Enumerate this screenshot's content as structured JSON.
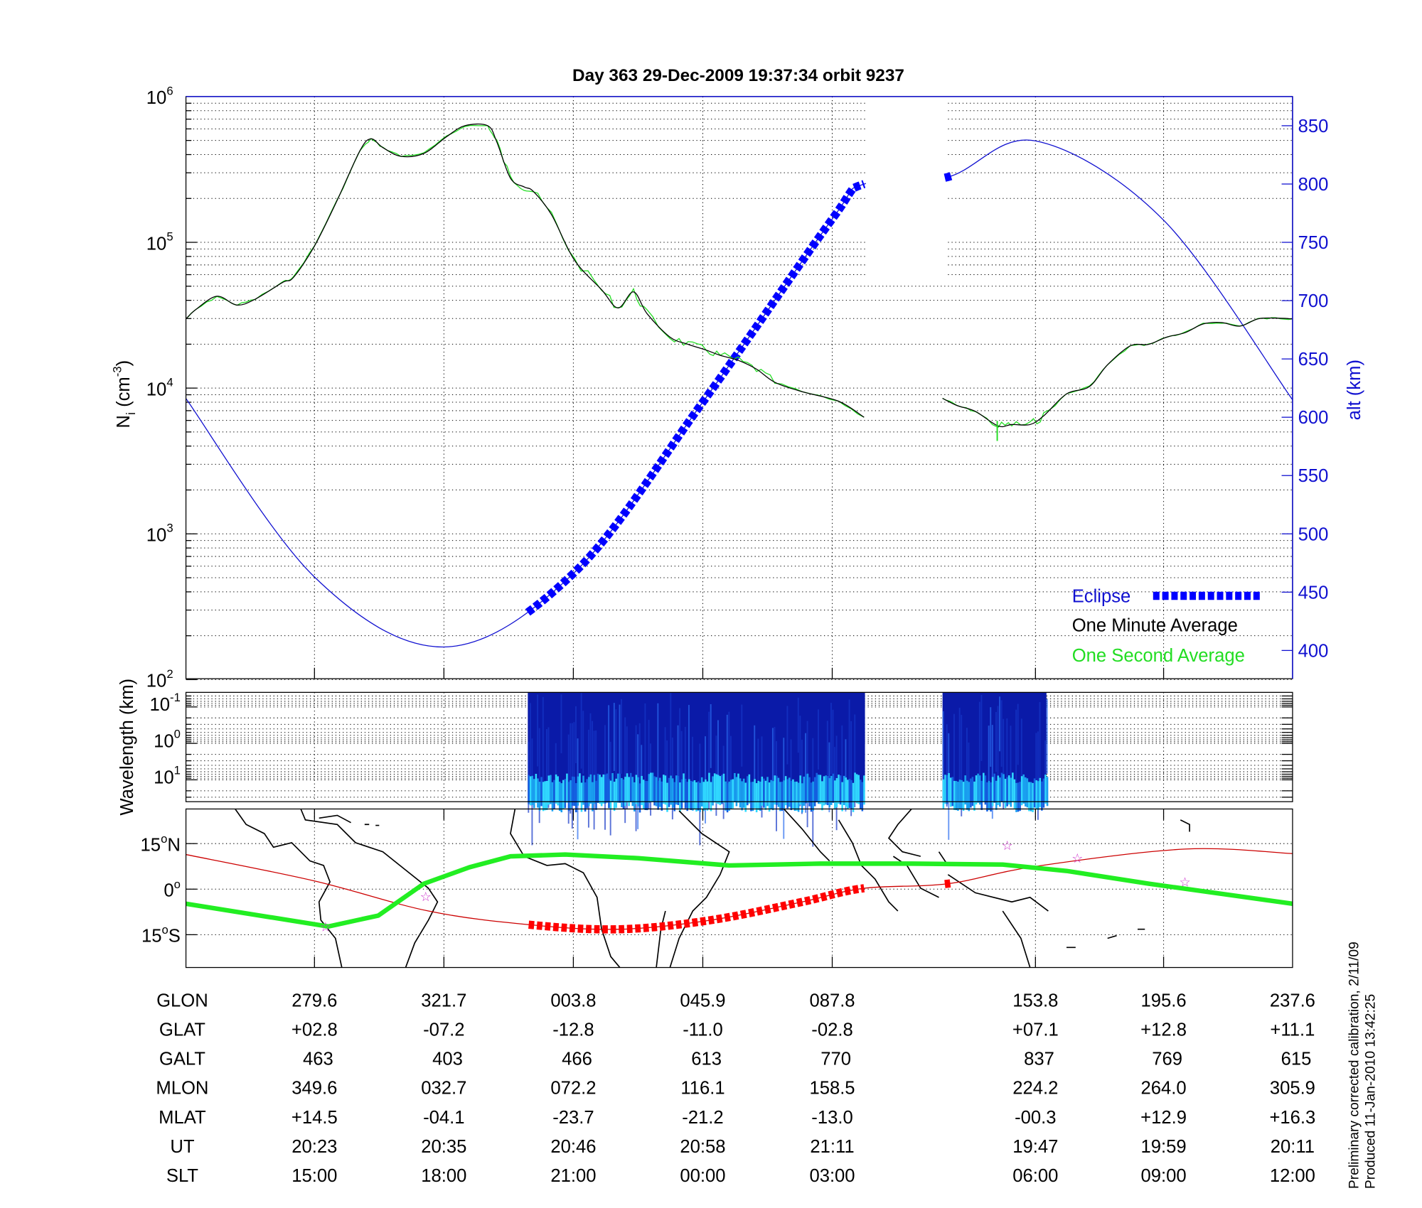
{
  "title": "Day 363  29-Dec-2009 19:37:34   orbit 9237",
  "side_notes": [
    "Preliminary corrected calibration, 2/11/09",
    "Produced 11-Jan-2010 13:42:25"
  ],
  "colors": {
    "minute_avg": "#000000",
    "second_avg": "#22dd22",
    "altitude": "#1010d0",
    "eclipse": "#0000ff",
    "track": "#cc0000",
    "footprint": "#22ee22",
    "star": "#cc33cc"
  },
  "chart_data": [
    {
      "type": "line",
      "title": "Day 363  29-Dec-2009 19:37:34   orbit 9237",
      "xunit": "x-tick index (0 = first labeled column)",
      "xlim": [
        -0.993,
        7.556
      ],
      "ylabel": {
        "base": "N",
        "sub": "i",
        "mid": " (cm",
        "sup": "-3",
        "end": ")"
      },
      "yscale": "log",
      "ylim_log10": [
        2,
        6
      ],
      "yticks": [
        {
          "base": "10",
          "exp": "6"
        },
        {
          "base": "10",
          "exp": "5"
        },
        {
          "base": "10",
          "exp": "4"
        },
        {
          "base": "10",
          "exp": "3"
        },
        {
          "base": "10",
          "exp": "2"
        }
      ],
      "y2label": "alt (km)",
      "y2lim": [
        375,
        875
      ],
      "y2ticks": [
        "850",
        "800",
        "750",
        "700",
        "650",
        "600",
        "550",
        "500",
        "450",
        "400"
      ],
      "legend": {
        "position": "bottom-right",
        "items": [
          "Eclipse",
          "One Minute Average",
          "One Second Average"
        ]
      },
      "series": [
        {
          "name": "One Minute Average",
          "axis": "log10_Ni",
          "segments": [
            [
              [
                -0.993,
                4.475
              ],
              [
                -0.915,
                4.54
              ],
              [
                -0.754,
                4.63
              ],
              [
                -0.599,
                4.57
              ],
              [
                -0.458,
                4.61
              ],
              [
                -0.246,
                4.725
              ],
              [
                -0.162,
                4.76
              ],
              [
                0,
                4.975
              ],
              [
                0.176,
                5.29
              ],
              [
                0.352,
                5.63
              ],
              [
                0.437,
                5.71
              ],
              [
                0.528,
                5.65
              ],
              [
                0.669,
                5.59
              ],
              [
                0.845,
                5.61
              ],
              [
                1.021,
                5.725
              ],
              [
                1.162,
                5.8
              ],
              [
                1.338,
                5.8
              ],
              [
                1.408,
                5.69
              ],
              [
                1.514,
                5.44
              ],
              [
                1.62,
                5.38
              ],
              [
                1.69,
                5.35
              ],
              [
                1.831,
                5.19
              ],
              [
                2.007,
                4.88
              ],
              [
                2.218,
                4.675
              ],
              [
                2.345,
                4.55
              ],
              [
                2.465,
                4.66
              ],
              [
                2.57,
                4.51
              ],
              [
                2.746,
                4.35
              ],
              [
                2.887,
                4.3
              ],
              [
                3.028,
                4.26
              ],
              [
                3.134,
                4.225
              ],
              [
                3.275,
                4.19
              ],
              [
                3.415,
                4.13
              ],
              [
                3.556,
                4.04
              ],
              [
                3.768,
                3.975
              ],
              [
                4.049,
                3.91
              ],
              [
                4.246,
                3.8
              ]
            ],
            [
              [
                4.852,
                3.93
              ],
              [
                4.965,
                3.88
              ],
              [
                5.106,
                3.84
              ],
              [
                5.282,
                3.74
              ],
              [
                5.387,
                3.75
              ],
              [
                5.528,
                3.75
              ],
              [
                5.634,
                3.81
              ],
              [
                5.81,
                3.96
              ],
              [
                5.986,
                4.01
              ],
              [
                6.127,
                4.16
              ],
              [
                6.303,
                4.29
              ],
              [
                6.444,
                4.3
              ],
              [
                6.585,
                4.35
              ],
              [
                6.725,
                4.38
              ],
              [
                6.866,
                4.44
              ],
              [
                7.007,
                4.45
              ],
              [
                7.148,
                4.425
              ],
              [
                7.289,
                4.475
              ],
              [
                7.43,
                4.48
              ],
              [
                7.556,
                4.475
              ]
            ]
          ]
        },
        {
          "name": "One Second Average",
          "axis": "log10_Ni",
          "note": "follows minute average with small fluctuations"
        },
        {
          "name": "Altitude",
          "axis": "alt_km",
          "points": [
            [
              -0.993,
              616
            ],
            [
              0,
              463
            ],
            [
              1,
              403
            ],
            [
              2,
              466
            ],
            [
              3,
              613
            ],
            [
              4,
              770
            ],
            [
              4.246,
              800
            ],
            [
              4.894,
              806
            ],
            [
              5.57,
              837
            ],
            [
              6.56,
              769
            ],
            [
              7.556,
              615
            ]
          ],
          "gap": [
            4.246,
            4.894
          ]
        },
        {
          "name": "Eclipse",
          "axis": "alt_km",
          "ranges": [
            [
              1.648,
              4.246
            ],
            [
              4.87,
              4.92
            ]
          ]
        }
      ]
    },
    {
      "type": "heatmap",
      "ylabel": "Wavelength (km)",
      "yticks": [
        {
          "base": "10",
          "exp": "-1"
        },
        {
          "base": "10",
          "exp": "0"
        },
        {
          "base": "10",
          "exp": "1"
        }
      ],
      "data_ranges": [
        [
          1.648,
          4.253
        ],
        [
          4.852,
          5.655
        ]
      ]
    },
    {
      "type": "line",
      "subtype": "map",
      "yticks": [
        {
          "num": "15",
          "deg": "o",
          "hem": "N"
        },
        {
          "num": "0",
          "deg": "o",
          "hem": ""
        },
        {
          "num": "15",
          "deg": "o",
          "hem": "S"
        }
      ],
      "footprint": [
        [
          -0.993,
          -4.8
        ],
        [
          0.106,
          -12.3
        ],
        [
          0.493,
          -8.7
        ],
        [
          0.845,
          1.8
        ],
        [
          1.197,
          7.2
        ],
        [
          1.514,
          10.8
        ],
        [
          1.937,
          11.4
        ],
        [
          2.5,
          10.2
        ],
        [
          3.204,
          7.8
        ],
        [
          3.908,
          8.4
        ],
        [
          4.613,
          8.4
        ],
        [
          5.317,
          8.1
        ],
        [
          5.81,
          6
        ],
        [
          6.444,
          1.8
        ],
        [
          7.556,
          -4.8
        ]
      ],
      "track": [
        [
          -0.993,
          11.4
        ],
        [
          0,
          2.7
        ],
        [
          0.88,
          -7.2
        ],
        [
          1.655,
          -11.7
        ],
        [
          2.359,
          -13.2
        ],
        [
          3.063,
          -10.2
        ],
        [
          3.768,
          -4.2
        ],
        [
          4.246,
          0.3
        ],
        [
          4.894,
          1.8
        ],
        [
          5.57,
          7.5
        ],
        [
          6.725,
          13.2
        ],
        [
          7.556,
          11.7
        ]
      ],
      "eclipse_ranges": [
        [
          1.655,
          4.246
        ],
        [
          4.87,
          4.93
        ]
      ],
      "stars": [
        [
          0.085,
          -12.3
        ],
        [
          0.859,
          -2.4
        ],
        [
          5.352,
          14.4
        ],
        [
          5.894,
          10.2
        ],
        [
          6.725,
          2.4
        ]
      ]
    }
  ],
  "table": {
    "rows": [
      {
        "label": "GLON",
        "values": [
          "279.6",
          "321.7",
          "003.8",
          "045.9",
          "087.8",
          "153.8",
          "195.6",
          "237.6"
        ]
      },
      {
        "label": "GLAT",
        "values": [
          "+02.8",
          "-07.2",
          "-12.8",
          "-11.0",
          "-02.8",
          "+07.1",
          "+12.8",
          "+11.1"
        ]
      },
      {
        "label": "GALT",
        "values": [
          "463",
          "403",
          "466",
          "613",
          "770",
          "837",
          "769",
          "615"
        ]
      },
      {
        "label": "MLON",
        "values": [
          "349.6",
          "032.7",
          "072.2",
          "116.1",
          "158.5",
          "224.2",
          "264.0",
          "305.9"
        ]
      },
      {
        "label": "MLAT",
        "values": [
          "+14.5",
          "-04.1",
          "-23.7",
          "-21.2",
          "-13.0",
          "-00.3",
          "+12.9",
          "+16.3"
        ]
      },
      {
        "label": "UT",
        "values": [
          "20:23",
          "20:35",
          "20:46",
          "20:58",
          "21:11",
          "19:47",
          "19:59",
          "20:11"
        ]
      },
      {
        "label": "SLT",
        "values": [
          "15:00",
          "18:00",
          "21:00",
          "00:00",
          "03:00",
          "06:00",
          "09:00",
          "12:00"
        ]
      }
    ]
  }
}
